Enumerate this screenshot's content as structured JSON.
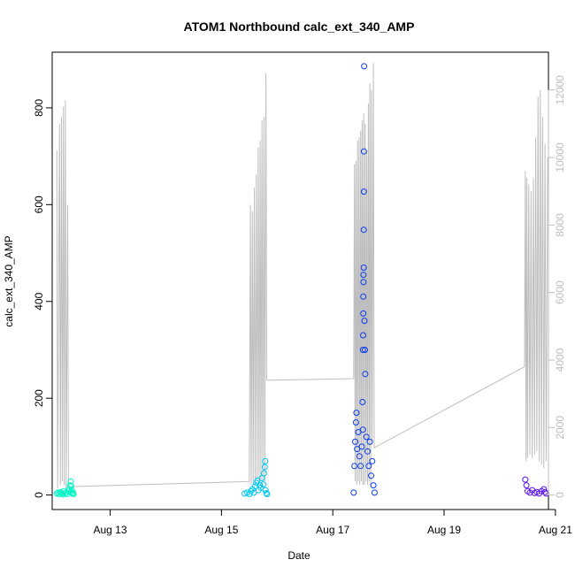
{
  "chart_data": {
    "type": "scatter",
    "title": "ATOM1 Northbound calc_ext_340_AMP",
    "xlabel": "Date",
    "ylabel": "calc_ext_340_AMP",
    "xlim": [
      "2012-08-11T23:00",
      "2012-08-20T21:00"
    ],
    "ylim": [
      -30,
      915
    ],
    "y2lim": [
      -430,
      13120
    ],
    "x_ticks": [
      {
        "label": "Aug 13",
        "date": "2012-08-13T00:00"
      },
      {
        "label": "Aug 15",
        "date": "2012-08-15T00:00"
      },
      {
        "label": "Aug 17",
        "date": "2012-08-17T00:00"
      },
      {
        "label": "Aug 19",
        "date": "2012-08-19T00:00"
      },
      {
        "label": "Aug 21",
        "date": "2012-08-21T00:00"
      }
    ],
    "y_ticks": [
      "0",
      "200",
      "400",
      "600",
      "800"
    ],
    "y2_ticks": [
      "0",
      "2000",
      "4000",
      "6000",
      "8000",
      "10000",
      "12000"
    ],
    "grid": false,
    "legend": "none",
    "series": [
      {
        "color": "#00f5c3",
        "points": [
          [
            "2012-08-12T01:00",
            3
          ],
          [
            "2012-08-12T01:30",
            5
          ],
          [
            "2012-08-12T02:00",
            2
          ],
          [
            "2012-08-12T02:30",
            6
          ],
          [
            "2012-08-12T03:00",
            4
          ],
          [
            "2012-08-12T03:30",
            1
          ],
          [
            "2012-08-12T04:00",
            8
          ],
          [
            "2012-08-12T04:30",
            3
          ],
          [
            "2012-08-12T05:00",
            5
          ],
          [
            "2012-08-12T05:30",
            2
          ],
          [
            "2012-08-12T06:00",
            7
          ],
          [
            "2012-08-12T06:20",
            12
          ],
          [
            "2012-08-12T06:40",
            20
          ],
          [
            "2012-08-12T07:00",
            28
          ],
          [
            "2012-08-12T07:10",
            18
          ],
          [
            "2012-08-12T07:20",
            6
          ],
          [
            "2012-08-12T07:30",
            10
          ],
          [
            "2012-08-12T07:45",
            3
          ],
          [
            "2012-08-12T08:00",
            4
          ],
          [
            "2012-08-12T08:15",
            2
          ]
        ]
      },
      {
        "color": "#00c8f0",
        "points": [
          [
            "2012-08-15T10:00",
            3
          ],
          [
            "2012-08-15T11:00",
            5
          ],
          [
            "2012-08-15T12:00",
            2
          ],
          [
            "2012-08-15T12:40",
            8
          ],
          [
            "2012-08-15T13:20",
            12
          ],
          [
            "2012-08-15T14:00",
            5
          ],
          [
            "2012-08-15T14:30",
            18
          ],
          [
            "2012-08-15T15:00",
            25
          ],
          [
            "2012-08-15T15:30",
            30
          ],
          [
            "2012-08-15T16:00",
            10
          ],
          [
            "2012-08-15T16:30",
            20
          ],
          [
            "2012-08-15T17:00",
            15
          ],
          [
            "2012-08-15T17:30",
            35
          ],
          [
            "2012-08-15T18:00",
            22
          ],
          [
            "2012-08-15T18:20",
            45
          ],
          [
            "2012-08-15T18:40",
            58
          ],
          [
            "2012-08-15T18:50",
            70
          ],
          [
            "2012-08-15T19:00",
            10
          ],
          [
            "2012-08-15T19:20",
            4
          ],
          [
            "2012-08-15T19:40",
            2
          ]
        ]
      },
      {
        "color": "#0a3cf0",
        "points": [
          [
            "2012-08-17T09:00",
            5
          ],
          [
            "2012-08-17T09:20",
            60
          ],
          [
            "2012-08-17T09:40",
            110
          ],
          [
            "2012-08-17T10:00",
            150
          ],
          [
            "2012-08-17T10:10",
            170
          ],
          [
            "2012-08-17T10:30",
            95
          ],
          [
            "2012-08-17T11:00",
            130
          ],
          [
            "2012-08-17T11:30",
            80
          ],
          [
            "2012-08-17T12:00",
            60
          ],
          [
            "2012-08-17T12:30",
            100
          ],
          [
            "2012-08-17T12:50",
            192
          ],
          [
            "2012-08-17T13:00",
            135
          ],
          [
            "2012-08-17T13:00",
            300
          ],
          [
            "2012-08-17T13:05",
            330
          ],
          [
            "2012-08-17T13:10",
            375
          ],
          [
            "2012-08-17T13:10",
            410
          ],
          [
            "2012-08-17T13:15",
            440
          ],
          [
            "2012-08-17T13:15",
            455
          ],
          [
            "2012-08-17T13:20",
            470
          ],
          [
            "2012-08-17T13:20",
            548
          ],
          [
            "2012-08-17T13:25",
            627
          ],
          [
            "2012-08-17T13:25",
            710
          ],
          [
            "2012-08-17T13:30",
            886
          ],
          [
            "2012-08-17T13:40",
            360
          ],
          [
            "2012-08-17T13:50",
            300
          ],
          [
            "2012-08-17T14:00",
            250
          ],
          [
            "2012-08-17T14:30",
            120
          ],
          [
            "2012-08-17T15:00",
            90
          ],
          [
            "2012-08-17T15:30",
            60
          ],
          [
            "2012-08-17T16:00",
            110
          ],
          [
            "2012-08-17T16:30",
            40
          ],
          [
            "2012-08-17T17:00",
            70
          ],
          [
            "2012-08-17T17:30",
            20
          ],
          [
            "2012-08-17T18:00",
            5
          ]
        ]
      },
      {
        "color": "#5a14f0",
        "points": [
          [
            "2012-08-20T11:00",
            32
          ],
          [
            "2012-08-20T11:30",
            20
          ],
          [
            "2012-08-20T12:00",
            8
          ],
          [
            "2012-08-20T13:00",
            5
          ],
          [
            "2012-08-20T14:00",
            10
          ],
          [
            "2012-08-20T15:00",
            4
          ],
          [
            "2012-08-20T16:00",
            6
          ],
          [
            "2012-08-20T17:00",
            3
          ],
          [
            "2012-08-20T18:00",
            8
          ],
          [
            "2012-08-20T19:00",
            12
          ],
          [
            "2012-08-20T19:30",
            6
          ],
          [
            "2012-08-20T20:00",
            3
          ]
        ]
      }
    ],
    "secondary_line": {
      "color": "#bebebe",
      "points": [
        [
          "2012-08-12T01:00",
          10200
        ],
        [
          "2012-08-12T01:20",
          200
        ],
        [
          "2012-08-12T02:10",
          11000
        ],
        [
          "2012-08-12T02:30",
          300
        ],
        [
          "2012-08-12T03:00",
          11200
        ],
        [
          "2012-08-12T03:20",
          400
        ],
        [
          "2012-08-12T03:50",
          11500
        ],
        [
          "2012-08-12T04:10",
          300
        ],
        [
          "2012-08-12T04:40",
          11700
        ],
        [
          "2012-08-12T05:00",
          200
        ],
        [
          "2012-08-12T05:40",
          8600
        ],
        [
          "2012-08-12T06:00",
          250
        ],
        [
          "2012-08-12T07:00",
          250
        ],
        [
          "2012-08-15T12:00",
          400
        ],
        [
          "2012-08-15T12:30",
          8600
        ],
        [
          "2012-08-15T12:50",
          300
        ],
        [
          "2012-08-15T13:20",
          8400
        ],
        [
          "2012-08-15T13:40",
          400
        ],
        [
          "2012-08-15T14:10",
          9100
        ],
        [
          "2012-08-15T14:30",
          300
        ],
        [
          "2012-08-15T15:00",
          9500
        ],
        [
          "2012-08-15T15:20",
          400
        ],
        [
          "2012-08-15T15:50",
          10300
        ],
        [
          "2012-08-15T16:10",
          300
        ],
        [
          "2012-08-15T16:40",
          10500
        ],
        [
          "2012-08-15T17:00",
          400
        ],
        [
          "2012-08-15T17:30",
          11100
        ],
        [
          "2012-08-15T17:50",
          300
        ],
        [
          "2012-08-15T18:20",
          11200
        ],
        [
          "2012-08-15T18:40",
          400
        ],
        [
          "2012-08-15T19:10",
          12500
        ],
        [
          "2012-08-15T19:30",
          3400
        ],
        [
          "2012-08-17T09:00",
          3450
        ],
        [
          "2012-08-17T09:20",
          9800
        ],
        [
          "2012-08-17T09:40",
          400
        ],
        [
          "2012-08-17T10:00",
          9900
        ],
        [
          "2012-08-17T10:20",
          300
        ],
        [
          "2012-08-17T10:40",
          10500
        ],
        [
          "2012-08-17T11:00",
          400
        ],
        [
          "2012-08-17T11:20",
          10600
        ],
        [
          "2012-08-17T11:40",
          300
        ],
        [
          "2012-08-17T12:00",
          10800
        ],
        [
          "2012-08-17T12:20",
          400
        ],
        [
          "2012-08-17T12:40",
          11100
        ],
        [
          "2012-08-17T13:00",
          300
        ],
        [
          "2012-08-17T13:20",
          11300
        ],
        [
          "2012-08-17T13:40",
          300
        ],
        [
          "2012-08-17T14:00",
          11000
        ],
        [
          "2012-08-17T14:20",
          400
        ],
        [
          "2012-08-17T14:40",
          10200
        ],
        [
          "2012-08-17T15:00",
          300
        ],
        [
          "2012-08-17T15:20",
          11600
        ],
        [
          "2012-08-17T15:40",
          400
        ],
        [
          "2012-08-17T16:00",
          12200
        ],
        [
          "2012-08-17T16:20",
          300
        ],
        [
          "2012-08-17T16:40",
          12000
        ],
        [
          "2012-08-17T17:00",
          1500
        ],
        [
          "2012-08-17T17:30",
          12800
        ],
        [
          "2012-08-17T17:50",
          1400
        ],
        [
          "2012-08-20T10:40",
          3800
        ],
        [
          "2012-08-20T11:00",
          9600
        ],
        [
          "2012-08-20T11:20",
          1000
        ],
        [
          "2012-08-20T11:40",
          9400
        ],
        [
          "2012-08-20T12:00",
          1100
        ],
        [
          "2012-08-20T12:30",
          9200
        ],
        [
          "2012-08-20T13:00",
          1200
        ],
        [
          "2012-08-20T13:30",
          9000
        ],
        [
          "2012-08-20T14:00",
          1100
        ],
        [
          "2012-08-20T14:30",
          9400
        ],
        [
          "2012-08-20T15:00",
          1200
        ],
        [
          "2012-08-20T15:30",
          10600
        ],
        [
          "2012-08-20T16:00",
          1300
        ],
        [
          "2012-08-20T16:30",
          11800
        ],
        [
          "2012-08-20T17:00",
          1000
        ],
        [
          "2012-08-20T17:30",
          12000
        ],
        [
          "2012-08-20T18:00",
          900
        ],
        [
          "2012-08-20T18:30",
          11200
        ],
        [
          "2012-08-20T19:00",
          800
        ],
        [
          "2012-08-20T19:30",
          10400
        ],
        [
          "2012-08-20T20:00",
          1000
        ],
        [
          "2012-08-20T20:40",
          10000
        ]
      ]
    }
  }
}
